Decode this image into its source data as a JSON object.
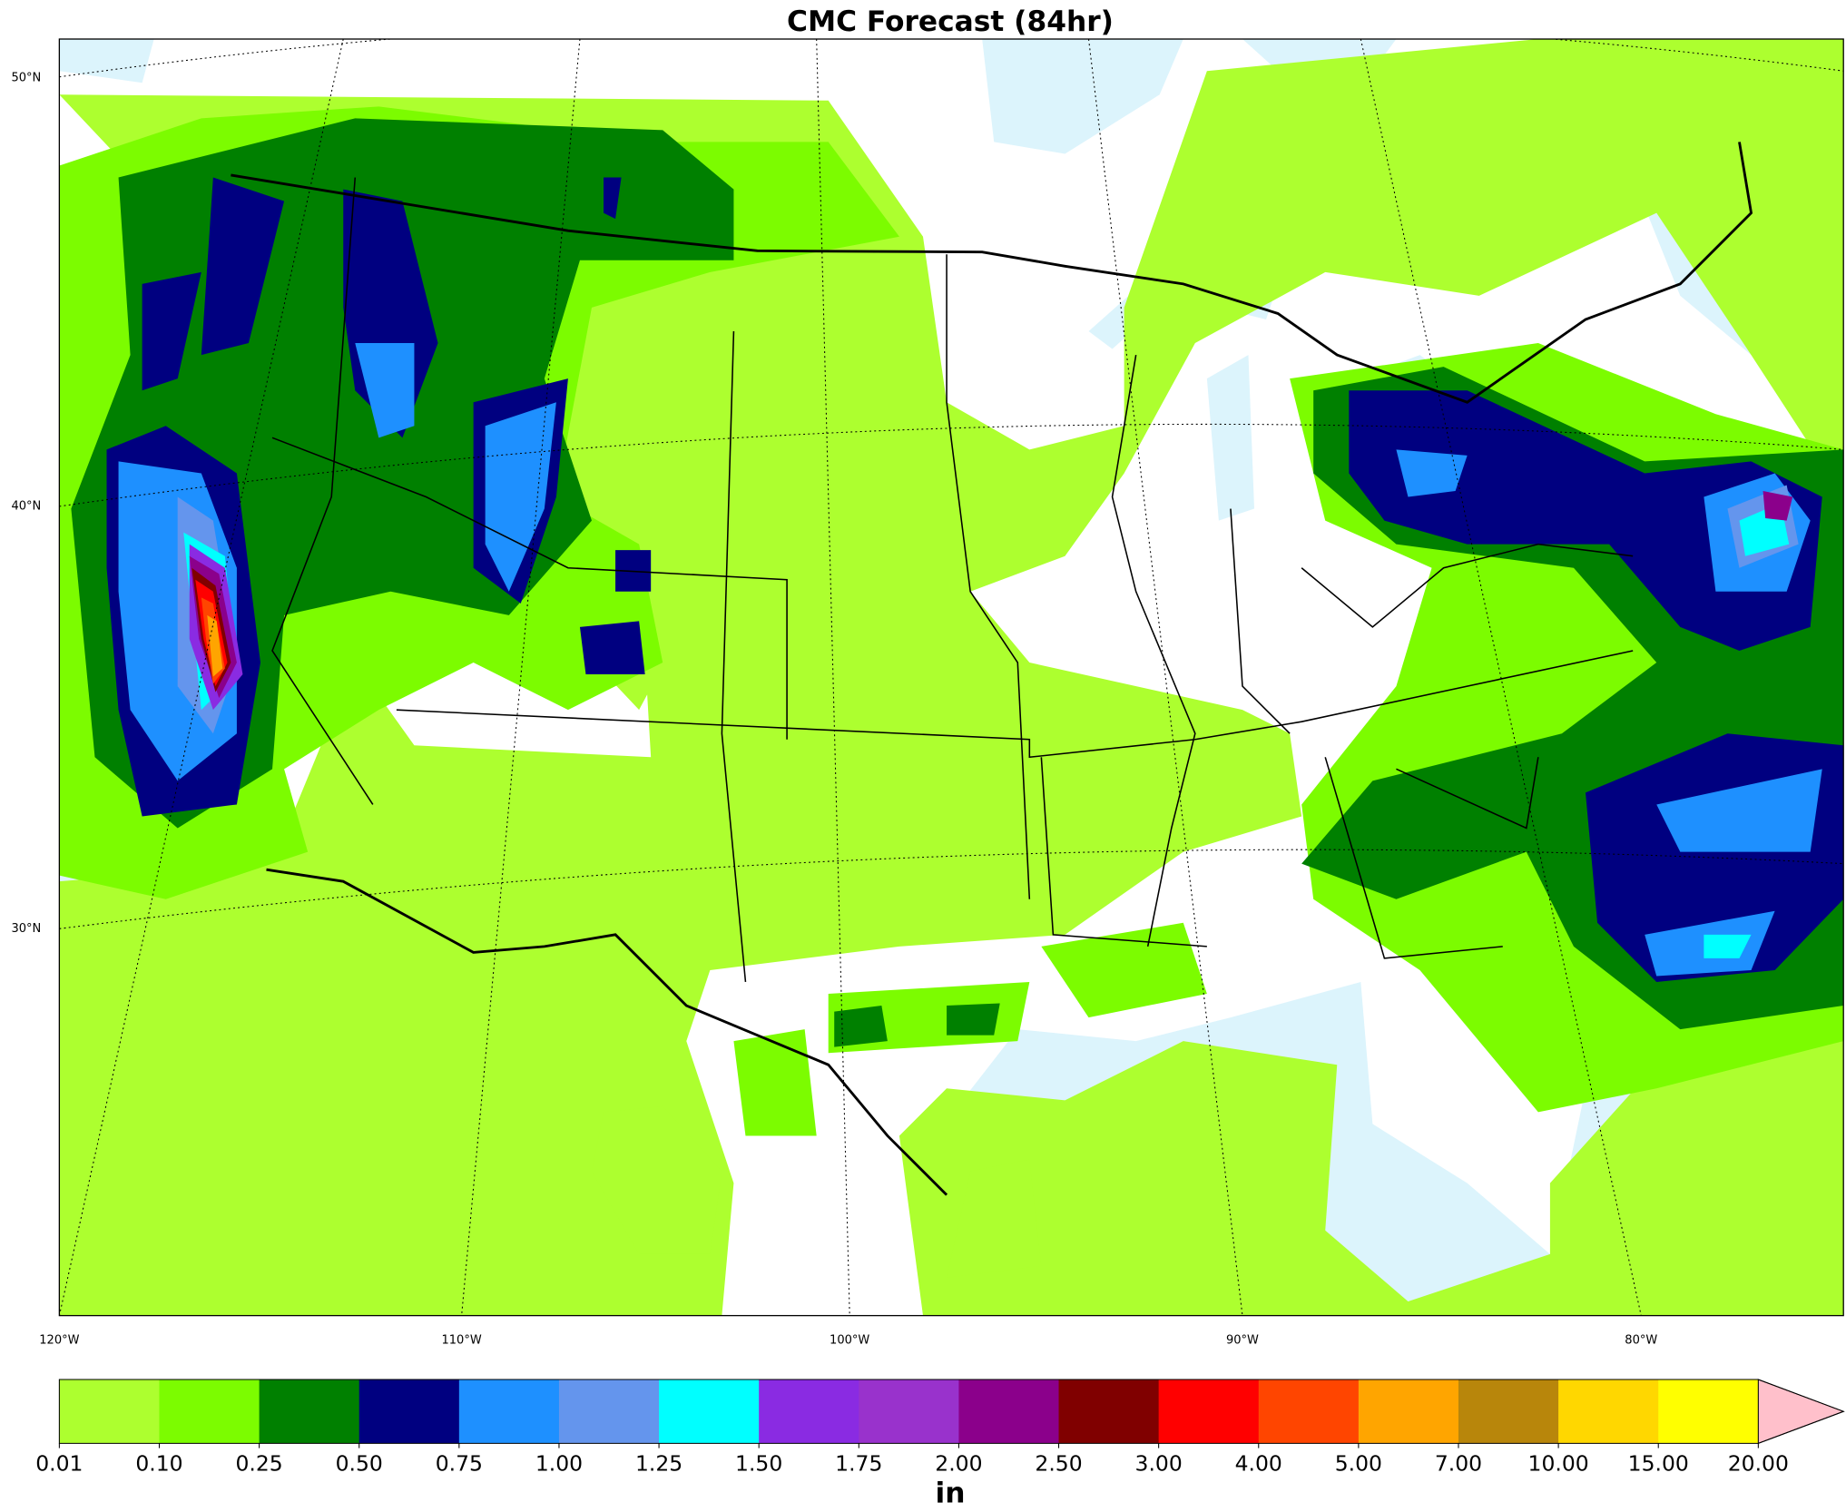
{
  "title": "CMC Forecast (84hr)",
  "map": {
    "lat_labels": [
      "50°N",
      "40°N",
      "30°N"
    ],
    "lon_labels": [
      "120°W",
      "110°W",
      "100°W",
      "90°W",
      "80°W"
    ],
    "land_color": "#ffffff",
    "ocean_color": "#dcf4fc"
  },
  "colorbar": {
    "levels": [
      {
        "value": 0.01,
        "label": "0.01"
      },
      {
        "value": 0.1,
        "label": "0.10"
      },
      {
        "value": 0.25,
        "label": "0.25"
      },
      {
        "value": 0.5,
        "label": "0.50"
      },
      {
        "value": 0.75,
        "label": "0.75"
      },
      {
        "value": 1,
        "label": "1.00"
      },
      {
        "value": 1.25,
        "label": "1.25"
      },
      {
        "value": 1.5,
        "label": "1.50"
      },
      {
        "value": 1.75,
        "label": "1.75"
      },
      {
        "value": 2,
        "label": "2.00"
      },
      {
        "value": 2.5,
        "label": "2.50"
      },
      {
        "value": 3,
        "label": "3.00"
      },
      {
        "value": 4,
        "label": "4.00"
      },
      {
        "value": 5,
        "label": "5.00"
      },
      {
        "value": 7,
        "label": "7.00"
      },
      {
        "value": 10,
        "label": "10.00"
      },
      {
        "value": 15,
        "label": "15.00"
      },
      {
        "value": 20,
        "label": "20.00"
      }
    ],
    "colors": [
      "#adff2f",
      "#7cfc00",
      "#008000",
      "#000080",
      "#1e90ff",
      "#6495ed",
      "#00ffff",
      "#8a2be2",
      "#9932cc",
      "#8b008b",
      "#800000",
      "#ff0000",
      "#ff4500",
      "#ffa500",
      "#b8860b",
      "#ffd700",
      "#ffff00"
    ],
    "extend_color": "#ffc0cb",
    "unit": "in"
  }
}
